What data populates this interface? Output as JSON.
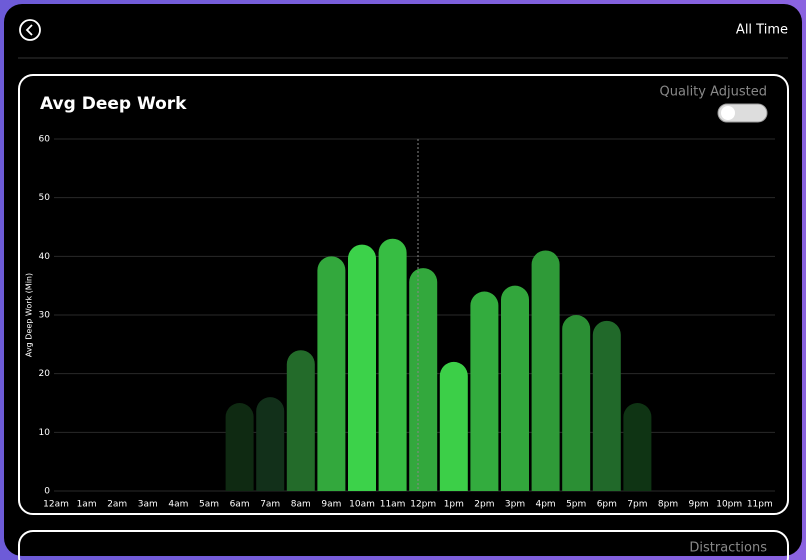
{
  "header": {
    "range": "All Time"
  },
  "chart_data": {
    "type": "bar",
    "title": "Avg Deep Work",
    "toggle_label": "Quality Adjusted",
    "y_label": "Avg Deep Work (Min)",
    "categories": [
      "12am",
      "1am",
      "2am",
      "3am",
      "4am",
      "5am",
      "6am",
      "7am",
      "8am",
      "9am",
      "10am",
      "11am",
      "12pm",
      "1pm",
      "2pm",
      "3pm",
      "4pm",
      "5pm",
      "6pm",
      "7pm",
      "8pm",
      "9pm",
      "10pm",
      "11pm"
    ],
    "values": [
      0,
      0,
      0,
      0,
      0,
      0,
      15,
      16,
      24,
      40,
      42,
      43,
      38,
      22,
      34,
      35,
      41,
      30,
      29,
      15,
      0,
      0,
      0,
      0
    ],
    "colors": [
      "#0f2a12",
      "#0f2a12",
      "#0f2a12",
      "#0f2a12",
      "#0f2a12",
      "#0f2a12",
      "#0f2a12",
      "#12301a",
      "#236b2a",
      "#33a83d",
      "#3cd24a",
      "#37bd43",
      "#33a83d",
      "#3ccf48",
      "#33ac3e",
      "#32a63c",
      "#2f9a38",
      "#2b8f34",
      "#21692a",
      "#0f3414",
      "#0f2a12",
      "#0f2a12",
      "#0f2a12",
      "#0f2a12"
    ],
    "ylim": [
      0,
      60
    ],
    "yticks": [
      0,
      10,
      20,
      30,
      40,
      50,
      60
    ],
    "grid": true
  },
  "next_card": {
    "label": "Distractions"
  }
}
